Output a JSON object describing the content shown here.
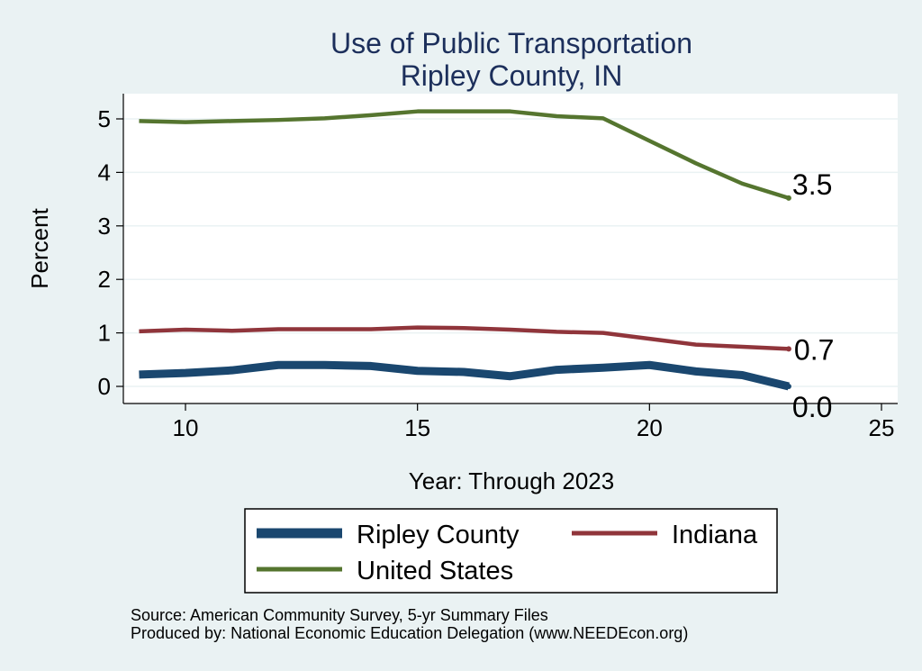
{
  "chart_data": {
    "type": "line",
    "title": "Use of Public Transportation",
    "subtitle": "Ripley County, IN",
    "xlabel": "Year: Through 2023",
    "ylabel": "Percent",
    "xlim": [
      9,
      25
    ],
    "ylim": [
      0,
      5
    ],
    "x_ticks": [
      10,
      15,
      20,
      25
    ],
    "y_ticks": [
      0,
      1,
      2,
      3,
      4,
      5
    ],
    "grid": true,
    "legend_position": "bottom",
    "series": [
      {
        "name": "Ripley County",
        "color": "#1a476f",
        "x": [
          9,
          10,
          11,
          12,
          13,
          14,
          15,
          16,
          17,
          18,
          19,
          20,
          21,
          22,
          23
        ],
        "y": [
          0.22,
          0.25,
          0.3,
          0.4,
          0.4,
          0.38,
          0.29,
          0.27,
          0.19,
          0.31,
          0.35,
          0.4,
          0.28,
          0.21,
          0.0
        ],
        "end_label": "0.0"
      },
      {
        "name": "Indiana",
        "color": "#90353b",
        "x": [
          9,
          10,
          11,
          12,
          13,
          14,
          15,
          16,
          17,
          18,
          19,
          20,
          21,
          22,
          23
        ],
        "y": [
          1.03,
          1.06,
          1.04,
          1.07,
          1.07,
          1.07,
          1.1,
          1.09,
          1.06,
          1.02,
          1.0,
          0.89,
          0.78,
          0.74,
          0.7
        ],
        "end_label": "0.7"
      },
      {
        "name": "United States",
        "color": "#55752f",
        "x": [
          9,
          10,
          11,
          12,
          13,
          14,
          15,
          16,
          17,
          18,
          19,
          20,
          21,
          22,
          23
        ],
        "y": [
          4.96,
          4.94,
          4.96,
          4.98,
          5.01,
          5.07,
          5.14,
          5.14,
          5.14,
          5.05,
          5.01,
          4.59,
          4.17,
          3.79,
          3.52
        ],
        "end_label": "3.5"
      }
    ],
    "source_note": "Source: American Community Survey, 5-yr Summary Files",
    "producer_note": "Produced by: National Economic Education Delegation (www.NEEDEcon.org)"
  }
}
